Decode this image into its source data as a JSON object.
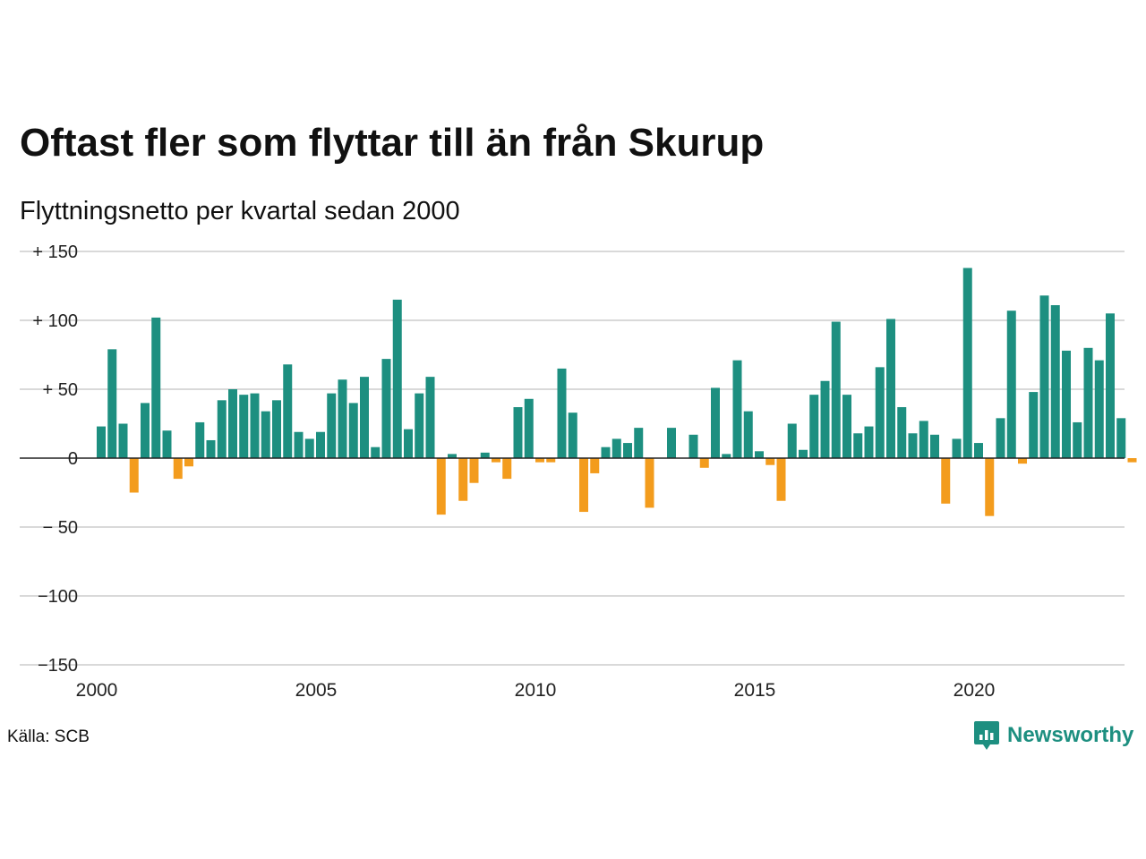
{
  "title": "Oftast fler som flyttar till än från Skurup",
  "subtitle": "Flyttningsnetto per kvartal sedan 2000",
  "source": "Källa: SCB",
  "brand": "Newsworthy",
  "colors": {
    "positive": "#1d8f80",
    "negative": "#f39c1d",
    "grid": "#d9d9d9",
    "axis": "#222222",
    "brand": "#1d8f80"
  },
  "chart_data": {
    "type": "bar",
    "ylim": [
      -150,
      150
    ],
    "yticks": [
      {
        "value": 150,
        "label": "+ 150"
      },
      {
        "value": 100,
        "label": "+ 100"
      },
      {
        "value": 50,
        "label": "+  50"
      },
      {
        "value": 0,
        "label": "0"
      },
      {
        "value": -50,
        "label": "− 50"
      },
      {
        "value": -100,
        "label": "−100"
      },
      {
        "value": -150,
        "label": "−150"
      }
    ],
    "xticks": [
      "2000",
      "2005",
      "2010",
      "2015",
      "2020"
    ],
    "start_year": 2000,
    "grid": true,
    "series": [
      {
        "values": [
          23,
          79,
          25,
          -25,
          40,
          102,
          20,
          -15,
          -6,
          26,
          13,
          42,
          50,
          46,
          47,
          34,
          42,
          68,
          19,
          14,
          19,
          47,
          57,
          40,
          59,
          8,
          72,
          115,
          21,
          47,
          59,
          -41,
          3,
          -31,
          -18,
          4,
          -3,
          -15,
          37,
          43,
          -3,
          -3,
          65,
          33,
          -39,
          -11,
          8,
          14,
          11,
          22,
          -36,
          0,
          22,
          0,
          17,
          -7,
          51,
          3,
          71,
          34,
          5,
          -5,
          -31,
          25,
          6,
          46,
          56,
          99,
          46,
          18,
          23,
          66,
          101,
          37,
          18,
          27,
          17,
          -33,
          14,
          138,
          11,
          -42,
          29,
          107,
          -4,
          48,
          118,
          111,
          78,
          26,
          80,
          71,
          105,
          29,
          -3
        ]
      }
    ]
  }
}
